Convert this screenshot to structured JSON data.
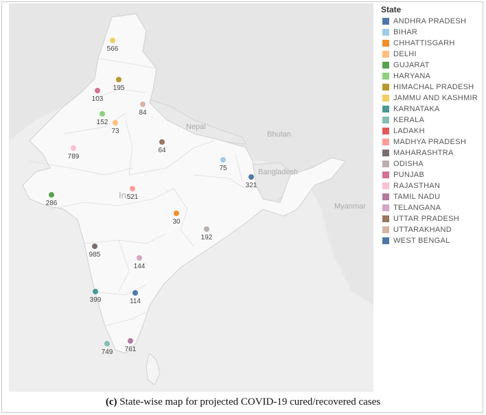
{
  "legend": {
    "title": "State",
    "items": [
      {
        "label": "ANDHRA PRADESH",
        "color": "#4e79a7"
      },
      {
        "label": "BIHAR",
        "color": "#a0cbe8"
      },
      {
        "label": "CHHATTISGARH",
        "color": "#f28e2b"
      },
      {
        "label": "DELHI",
        "color": "#ffbe7d"
      },
      {
        "label": "GUJARAT",
        "color": "#59a14f"
      },
      {
        "label": "HARYANA",
        "color": "#8cd17d"
      },
      {
        "label": "HIMACHAL PRADESH",
        "color": "#b6992d"
      },
      {
        "label": "JAMMU AND KASHMIR",
        "color": "#f1ce63"
      },
      {
        "label": "KARNATAKA",
        "color": "#499894"
      },
      {
        "label": "KERALA",
        "color": "#86bcb6"
      },
      {
        "label": "LADAKH",
        "color": "#e15759"
      },
      {
        "label": "MADHYA PRADESH",
        "color": "#ff9d9a"
      },
      {
        "label": "MAHARASHTRA",
        "color": "#79706e"
      },
      {
        "label": "ODISHA",
        "color": "#bab0ac"
      },
      {
        "label": "PUNJAB",
        "color": "#d37295"
      },
      {
        "label": "RAJASTHAN",
        "color": "#fabfd2"
      },
      {
        "label": "TAMIL NADU",
        "color": "#b07aa1"
      },
      {
        "label": "TELANGANA",
        "color": "#d4a6c8"
      },
      {
        "label": "UTTAR PRADESH",
        "color": "#9d7660"
      },
      {
        "label": "UTTARAKHAND",
        "color": "#d7b5a6"
      },
      {
        "label": "WEST BENGAL",
        "color": "#4e79a7"
      }
    ]
  },
  "map_labels": {
    "nepal": "Nepal",
    "bhutan": "Bhutan",
    "bangladesh": "Bangladesh",
    "myanmar": "Myanmar",
    "india_partial": "In"
  },
  "points": [
    {
      "state": "JAMMU AND KASHMIR",
      "value": "566",
      "color": "#f1ce63"
    },
    {
      "state": "HIMACHAL PRADESH",
      "value": "195",
      "color": "#b6992d"
    },
    {
      "state": "PUNJAB",
      "value": "103",
      "color": "#d37295"
    },
    {
      "state": "UTTARAKHAND",
      "value": "84",
      "color": "#d7b5a6"
    },
    {
      "state": "HARYANA",
      "value": "152",
      "color": "#8cd17d"
    },
    {
      "state": "DELHI",
      "value": "73",
      "color": "#ffbe7d"
    },
    {
      "state": "UTTAR PRADESH",
      "value": "64",
      "color": "#9d7660"
    },
    {
      "state": "RAJASTHAN",
      "value": "789",
      "color": "#fabfd2"
    },
    {
      "state": "BIHAR",
      "value": "75",
      "color": "#a0cbe8"
    },
    {
      "state": "WEST BENGAL",
      "value": "321",
      "color": "#4e79a7"
    },
    {
      "state": "MADHYA PRADESH",
      "value": "521",
      "color": "#ff9d9a"
    },
    {
      "state": "GUJARAT",
      "value": "286",
      "color": "#59a14f"
    },
    {
      "state": "CHHATTISGARH",
      "value": "30",
      "color": "#f28e2b"
    },
    {
      "state": "ODISHA",
      "value": "192",
      "color": "#bab0ac"
    },
    {
      "state": "MAHARASHTRA",
      "value": "985",
      "color": "#79706e"
    },
    {
      "state": "TELANGANA",
      "value": "144",
      "color": "#d4a6c8"
    },
    {
      "state": "KARNATAKA",
      "value": "399",
      "color": "#499894"
    },
    {
      "state": "ANDHRA PRADESH",
      "value": "114",
      "color": "#4e79a7"
    },
    {
      "state": "KERALA",
      "value": "749",
      "color": "#86bcb6"
    },
    {
      "state": "TAMIL NADU",
      "value": "761",
      "color": "#b07aa1"
    }
  ],
  "caption": {
    "prefix": "(c)",
    "text": " State-wise map for projected COVID-19 cured/recovered cases"
  }
}
